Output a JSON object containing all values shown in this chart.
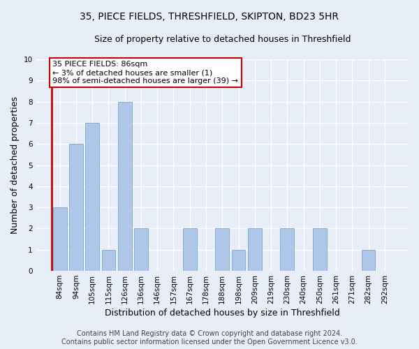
{
  "title": "35, PIECE FIELDS, THRESHFIELD, SKIPTON, BD23 5HR",
  "subtitle": "Size of property relative to detached houses in Threshfield",
  "xlabel": "Distribution of detached houses by size in Threshfield",
  "ylabel": "Number of detached properties",
  "categories": [
    "84sqm",
    "94sqm",
    "105sqm",
    "115sqm",
    "126sqm",
    "136sqm",
    "146sqm",
    "157sqm",
    "167sqm",
    "178sqm",
    "188sqm",
    "198sqm",
    "209sqm",
    "219sqm",
    "230sqm",
    "240sqm",
    "250sqm",
    "261sqm",
    "271sqm",
    "282sqm",
    "292sqm"
  ],
  "values": [
    3,
    6,
    7,
    1,
    8,
    2,
    0,
    0,
    2,
    0,
    2,
    1,
    2,
    0,
    2,
    0,
    2,
    0,
    0,
    1,
    0
  ],
  "bar_color": "#aec6e8",
  "bar_edge_color": "#6a9cc9",
  "annotation_text": "35 PIECE FIELDS: 86sqm\n← 3% of detached houses are smaller (1)\n98% of semi-detached houses are larger (39) →",
  "annotation_box_color": "#ffffff",
  "annotation_box_edge_color": "#cc0000",
  "red_line_color": "#cc0000",
  "ylim": [
    0,
    10
  ],
  "yticks": [
    0,
    1,
    2,
    3,
    4,
    5,
    6,
    7,
    8,
    9,
    10
  ],
  "footer_line1": "Contains HM Land Registry data © Crown copyright and database right 2024.",
  "footer_line2": "Contains public sector information licensed under the Open Government Licence v3.0.",
  "background_color": "#e8eef8",
  "grid_color": "#ffffff",
  "title_fontsize": 10,
  "subtitle_fontsize": 9,
  "axis_label_fontsize": 9,
  "tick_fontsize": 7.5,
  "annotation_fontsize": 8,
  "footer_fontsize": 7
}
